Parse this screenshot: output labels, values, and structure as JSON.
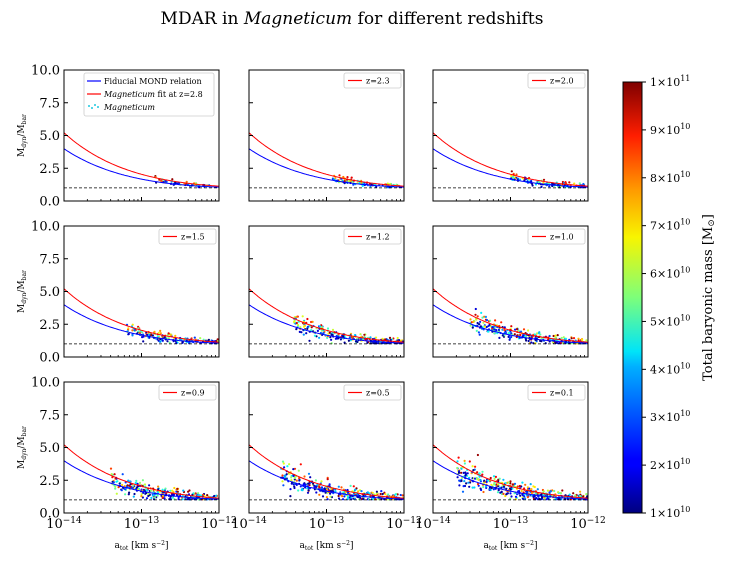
{
  "figure": {
    "title_prefix": "MDAR in ",
    "title_italic": "Magneticum",
    "title_suffix": " for different redshifts"
  },
  "chart_data": {
    "type": "scatter",
    "title": "MDAR in Magneticum for different redshifts",
    "xlabel": "a_tot [km s^-2]",
    "xlabel_parts": {
      "main": "a",
      "sub": "tot",
      "units": " [km s",
      "sup": "−2",
      "close": "]"
    },
    "ylabel": "M_dyn/M_bar",
    "ylabel_parts": {
      "m1": "M",
      "sub1": "dyn",
      "slash": "/M",
      "sub2": "bar"
    },
    "xscale": "log",
    "xlim": [
      1e-14,
      1e-12
    ],
    "ylim": [
      0,
      10
    ],
    "x_ticks": [
      {
        "value": 1e-14,
        "base": "10",
        "exp": "−14"
      },
      {
        "value": 1e-13,
        "base": "10",
        "exp": "−13"
      },
      {
        "value": 1e-12,
        "base": "10",
        "exp": "−12"
      }
    ],
    "y_ticks": [
      {
        "value": 0,
        "label": "0.0"
      },
      {
        "value": 2.5,
        "label": "2.5"
      },
      {
        "value": 5,
        "label": "5.0"
      },
      {
        "value": 7.5,
        "label": "7.5"
      },
      {
        "value": 10,
        "label": "10.0"
      }
    ],
    "reference_line": {
      "y": 1.0,
      "style": "dashed",
      "color": "#000000"
    },
    "curves": {
      "mond": {
        "name": "Fiducial MOND relation",
        "color": "#0000ff",
        "a0": 1.2e-13
      },
      "fit": {
        "name_italic": "Magneticum",
        "name_rest": " fit at z=2.8",
        "color": "#ff0000",
        "a0": 2.2e-13
      }
    },
    "scatter_legend": {
      "name_italic": "Magneticum",
      "color": "#1ec8e0"
    },
    "panels": [
      {
        "z": 2.8,
        "label": "",
        "n": 60,
        "xmin": 1.5e-13,
        "xmax": 8e-13,
        "spread": 0.35
      },
      {
        "z": 2.3,
        "label": "z=2.3",
        "n": 110,
        "xmin": 1.2e-13,
        "xmax": 9e-13,
        "spread": 0.45
      },
      {
        "z": 2.0,
        "label": "z=2.0",
        "n": 130,
        "xmin": 1e-13,
        "xmax": 9e-13,
        "spread": 0.45
      },
      {
        "z": 1.5,
        "label": "z=1.5",
        "n": 170,
        "xmin": 6.5e-14,
        "xmax": 1e-12,
        "spread": 0.55
      },
      {
        "z": 1.2,
        "label": "z=1.2",
        "n": 260,
        "xmin": 3.8e-14,
        "xmax": 1e-12,
        "spread": 0.7
      },
      {
        "z": 1.0,
        "label": "z=1.0",
        "n": 300,
        "xmin": 3e-14,
        "xmax": 1e-12,
        "spread": 0.8
      },
      {
        "z": 0.9,
        "label": "z=0.9",
        "n": 300,
        "xmin": 4e-14,
        "xmax": 1e-12,
        "spread": 0.85
      },
      {
        "z": 0.5,
        "label": "z=0.5",
        "n": 360,
        "xmin": 2.6e-14,
        "xmax": 1e-12,
        "spread": 0.9
      },
      {
        "z": 0.1,
        "label": "z=0.1",
        "n": 400,
        "xmin": 2e-14,
        "xmax": 1e-12,
        "spread": 0.95
      }
    ],
    "colorbar": {
      "label": "Total baryonic mass [M",
      "label_sun": "⊙",
      "label_close": "]",
      "min": 10000000000.0,
      "max": 100000000000.0,
      "colormap": "jet",
      "ticks": [
        {
          "value": 10000000000.0,
          "mant": "1",
          "base": "×10",
          "exp": "10"
        },
        {
          "value": 20000000000.0,
          "mant": "2",
          "base": "×10",
          "exp": "10"
        },
        {
          "value": 30000000000.0,
          "mant": "3",
          "base": "×10",
          "exp": "10"
        },
        {
          "value": 40000000000.0,
          "mant": "4",
          "base": "×10",
          "exp": "10"
        },
        {
          "value": 50000000000.0,
          "mant": "5",
          "base": "×10",
          "exp": "10"
        },
        {
          "value": 60000000000.0,
          "mant": "6",
          "base": "×10",
          "exp": "10"
        },
        {
          "value": 70000000000.0,
          "mant": "7",
          "base": "×10",
          "exp": "10"
        },
        {
          "value": 80000000000.0,
          "mant": "8",
          "base": "×10",
          "exp": "10"
        },
        {
          "value": 90000000000.0,
          "mant": "9",
          "base": "×10",
          "exp": "10"
        },
        {
          "value": 100000000000.0,
          "mant": "1",
          "base": "×10",
          "exp": "11"
        }
      ]
    }
  }
}
